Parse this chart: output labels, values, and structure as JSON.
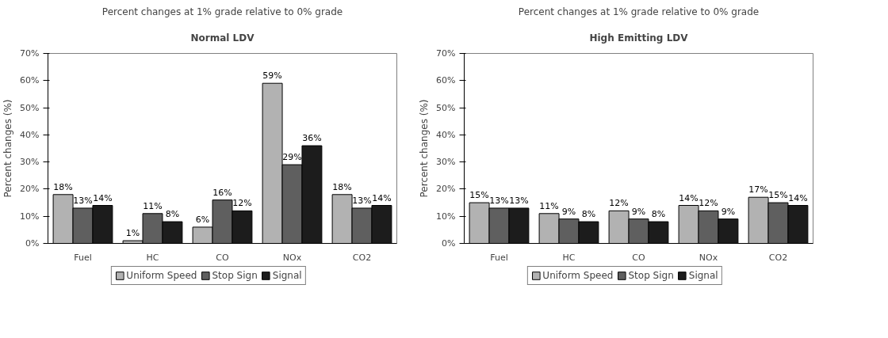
{
  "chart_data": [
    {
      "type": "bar",
      "title": "Percent changes at 1% grade relative to 0% grade",
      "subtitle": "Normal LDV",
      "ylabel": "Percent changes (%)",
      "categories": [
        "Fuel",
        "HC",
        "CO",
        "NOx",
        "CO2"
      ],
      "series": [
        {
          "name": "Uniform Speed",
          "color": "#b2b2b2",
          "values": [
            18,
            1,
            6,
            59,
            18
          ],
          "value_labels": [
            "18%",
            "1%",
            "6%",
            "59%",
            "18%"
          ]
        },
        {
          "name": "Stop Sign",
          "color": "#5f5f5f",
          "values": [
            13,
            11,
            16,
            29,
            13
          ],
          "value_labels": [
            "13%",
            "11%",
            "16%",
            "29%",
            "13%"
          ]
        },
        {
          "name": "Signal",
          "color": "#1c1c1c",
          "values": [
            14,
            8,
            12,
            36,
            14
          ],
          "value_labels": [
            "14%",
            "8%",
            "12%",
            "36%",
            "14%"
          ]
        }
      ],
      "ylim": [
        0,
        70
      ],
      "yticks": [
        {
          "value": 0,
          "label": "0%"
        },
        {
          "value": 10,
          "label": "10%"
        },
        {
          "value": 20,
          "label": "20%"
        },
        {
          "value": 30,
          "label": "30%"
        },
        {
          "value": 40,
          "label": "40%"
        },
        {
          "value": 50,
          "label": "50%"
        },
        {
          "value": 60,
          "label": "60%"
        },
        {
          "value": 70,
          "label": "70%"
        }
      ],
      "grid": false,
      "legend": "bottom"
    },
    {
      "type": "bar",
      "title": "Percent changes at 1% grade relative to 0% grade",
      "subtitle": "High Emitting LDV",
      "ylabel": "Percent changes (%)",
      "categories": [
        "Fuel",
        "HC",
        "CO",
        "NOx",
        "CO2"
      ],
      "series": [
        {
          "name": "Uniform Speed",
          "color": "#b2b2b2",
          "values": [
            15,
            11,
            12,
            14,
            17
          ],
          "value_labels": [
            "15%",
            "11%",
            "12%",
            "14%",
            "17%"
          ]
        },
        {
          "name": "Stop Sign",
          "color": "#5f5f5f",
          "values": [
            13,
            9,
            9,
            12,
            15
          ],
          "value_labels": [
            "13%",
            "9%",
            "9%",
            "12%",
            "15%"
          ]
        },
        {
          "name": "Signal",
          "color": "#1c1c1c",
          "values": [
            13,
            8,
            8,
            9,
            14
          ],
          "value_labels": [
            "13%",
            "8%",
            "8%",
            "9%",
            "14%"
          ]
        }
      ],
      "ylim": [
        0,
        70
      ],
      "yticks": [
        {
          "value": 0,
          "label": "0%"
        },
        {
          "value": 10,
          "label": "10%"
        },
        {
          "value": 20,
          "label": "20%"
        },
        {
          "value": 30,
          "label": "30%"
        },
        {
          "value": 40,
          "label": "40%"
        },
        {
          "value": 50,
          "label": "50%"
        },
        {
          "value": 60,
          "label": "60%"
        },
        {
          "value": 70,
          "label": "70%"
        }
      ],
      "grid": false,
      "legend": "bottom"
    }
  ]
}
